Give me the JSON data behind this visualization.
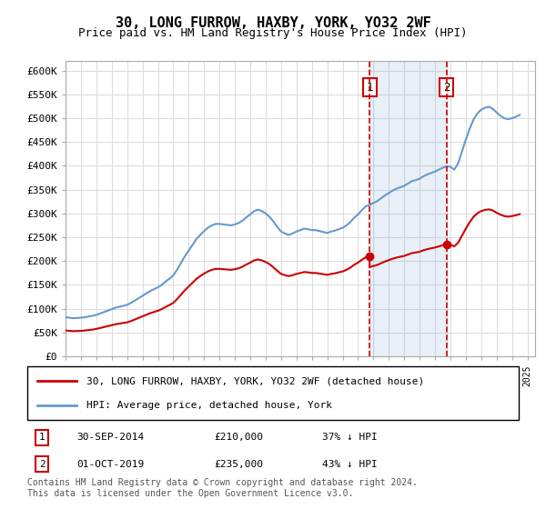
{
  "title": "30, LONG FURROW, HAXBY, YORK, YO32 2WF",
  "subtitle": "Price paid vs. HM Land Registry's House Price Index (HPI)",
  "ylabel_ticks": [
    "£0",
    "£50K",
    "£100K",
    "£150K",
    "£200K",
    "£250K",
    "£300K",
    "£350K",
    "£400K",
    "£450K",
    "£500K",
    "£550K",
    "£600K"
  ],
  "ytick_values": [
    0,
    50000,
    100000,
    150000,
    200000,
    250000,
    300000,
    350000,
    400000,
    450000,
    500000,
    550000,
    600000
  ],
  "ylim": [
    0,
    620000
  ],
  "xlim_start": 1995.0,
  "xlim_end": 2025.5,
  "hpi_color": "#6699cc",
  "price_color": "#cc0000",
  "grid_color": "#dddddd",
  "transaction1_date": "30-SEP-2014",
  "transaction1_year": 2014.75,
  "transaction1_price": 210000,
  "transaction1_pct": "37%",
  "transaction2_date": "01-OCT-2019",
  "transaction2_year": 2019.75,
  "transaction2_price": 235000,
  "transaction2_pct": "43%",
  "legend_line1": "30, LONG FURROW, HAXBY, YORK, YO32 2WF (detached house)",
  "legend_line2": "HPI: Average price, detached house, York",
  "footnote": "Contains HM Land Registry data © Crown copyright and database right 2024.\nThis data is licensed under the Open Government Licence v3.0.",
  "hpi_data_x": [
    1995.0,
    1995.25,
    1995.5,
    1995.75,
    1996.0,
    1996.25,
    1996.5,
    1996.75,
    1997.0,
    1997.25,
    1997.5,
    1997.75,
    1998.0,
    1998.25,
    1998.5,
    1998.75,
    1999.0,
    1999.25,
    1999.5,
    1999.75,
    2000.0,
    2000.25,
    2000.5,
    2000.75,
    2001.0,
    2001.25,
    2001.5,
    2001.75,
    2002.0,
    2002.25,
    2002.5,
    2002.75,
    2003.0,
    2003.25,
    2003.5,
    2003.75,
    2004.0,
    2004.25,
    2004.5,
    2004.75,
    2005.0,
    2005.25,
    2005.5,
    2005.75,
    2006.0,
    2006.25,
    2006.5,
    2006.75,
    2007.0,
    2007.25,
    2007.5,
    2007.75,
    2008.0,
    2008.25,
    2008.5,
    2008.75,
    2009.0,
    2009.25,
    2009.5,
    2009.75,
    2010.0,
    2010.25,
    2010.5,
    2010.75,
    2011.0,
    2011.25,
    2011.5,
    2011.75,
    2012.0,
    2012.25,
    2012.5,
    2012.75,
    2013.0,
    2013.25,
    2013.5,
    2013.75,
    2014.0,
    2014.25,
    2014.5,
    2014.75,
    2015.0,
    2015.25,
    2015.5,
    2015.75,
    2016.0,
    2016.25,
    2016.5,
    2016.75,
    2017.0,
    2017.25,
    2017.5,
    2017.75,
    2018.0,
    2018.25,
    2018.5,
    2018.75,
    2019.0,
    2019.25,
    2019.5,
    2019.75,
    2020.0,
    2020.25,
    2020.5,
    2020.75,
    2021.0,
    2021.25,
    2021.5,
    2021.75,
    2022.0,
    2022.25,
    2022.5,
    2022.75,
    2023.0,
    2023.25,
    2023.5,
    2023.75,
    2024.0,
    2024.25,
    2024.5
  ],
  "hpi_data_y": [
    82000,
    81000,
    80000,
    80500,
    81000,
    82000,
    83500,
    85000,
    87000,
    90000,
    93000,
    96000,
    99000,
    102000,
    104000,
    106000,
    108000,
    112000,
    117000,
    122000,
    127000,
    132000,
    137000,
    141000,
    145000,
    150000,
    157000,
    163000,
    170000,
    182000,
    196000,
    210000,
    222000,
    234000,
    246000,
    255000,
    263000,
    270000,
    275000,
    278000,
    278000,
    277000,
    276000,
    275000,
    277000,
    280000,
    285000,
    292000,
    298000,
    305000,
    308000,
    305000,
    300000,
    293000,
    283000,
    272000,
    262000,
    258000,
    255000,
    258000,
    262000,
    265000,
    268000,
    267000,
    265000,
    265000,
    263000,
    261000,
    259000,
    262000,
    264000,
    267000,
    270000,
    275000,
    282000,
    291000,
    298000,
    307000,
    315000,
    318000,
    322000,
    326000,
    332000,
    338000,
    343000,
    348000,
    352000,
    355000,
    358000,
    363000,
    368000,
    370000,
    373000,
    378000,
    382000,
    385000,
    388000,
    392000,
    396000,
    399000,
    398000,
    392000,
    405000,
    430000,
    455000,
    478000,
    497000,
    510000,
    518000,
    522000,
    524000,
    520000,
    512000,
    505000,
    500000,
    498000,
    500000,
    503000,
    507000
  ]
}
